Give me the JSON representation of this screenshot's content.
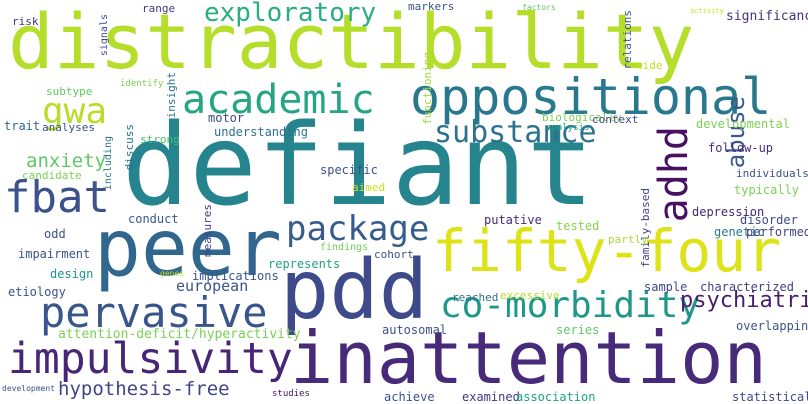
{
  "words": [
    {
      "text": "distractibility",
      "color": "#b5de2b"
    },
    {
      "text": "defiant",
      "color": "#25848e"
    },
    {
      "text": "inattention",
      "color": "#472a7a"
    },
    {
      "text": "pdd",
      "color": "#3e4a89"
    },
    {
      "text": "peer",
      "color": "#31668e"
    },
    {
      "text": "fifty-four",
      "color": "#dde318"
    },
    {
      "text": "oppositional",
      "color": "#2a788e"
    },
    {
      "text": "academic",
      "color": "#25a584"
    },
    {
      "text": "impulsivity",
      "color": "#482677"
    },
    {
      "text": "pervasive",
      "color": "#39568c"
    },
    {
      "text": "co-morbidity",
      "color": "#1f988b"
    },
    {
      "text": "package",
      "color": "#365c8d"
    },
    {
      "text": "gwa",
      "color": "#b8de29"
    },
    {
      "text": "fbat",
      "color": "#3b528b"
    },
    {
      "text": "exploratory",
      "color": "#29af7f"
    },
    {
      "text": "substance",
      "color": "#2c728e"
    },
    {
      "text": "adhd",
      "color": "#471063"
    },
    {
      "text": "abuse",
      "color": "#38598c"
    },
    {
      "text": "psychiatric",
      "color": "#481f70"
    },
    {
      "text": "hypothesis-free",
      "color": "#414487"
    },
    {
      "text": "anxiety",
      "color": "#5ec962"
    },
    {
      "text": "attention-deficit/hyperactivity",
      "color": "#7ad151"
    },
    {
      "text": "european",
      "color": "#3b528b"
    },
    {
      "text": "significance",
      "color": "#46327e"
    },
    {
      "text": "range",
      "color": "#443983"
    },
    {
      "text": "markers",
      "color": "#3b528b"
    },
    {
      "text": "risk",
      "color": "#46327e"
    },
    {
      "text": "signals",
      "color": "#3e4a89"
    },
    {
      "text": "relations",
      "color": "#3b528b"
    },
    {
      "text": "functioning",
      "color": "#a0da39"
    },
    {
      "text": "subtype",
      "color": "#5ec962"
    },
    {
      "text": "identify",
      "color": "#7ad151"
    },
    {
      "text": "insight",
      "color": "#2a788e"
    },
    {
      "text": "wide",
      "color": "#c2df23"
    },
    {
      "text": "trait",
      "color": "#31688e"
    },
    {
      "text": "analyses",
      "color": "#3b528b"
    },
    {
      "text": "motor",
      "color": "#3f4788"
    },
    {
      "text": "biologically",
      "color": "#7ad151"
    },
    {
      "text": "analysis",
      "color": "#22a884"
    },
    {
      "text": "context",
      "color": "#414487"
    },
    {
      "text": "developmental",
      "color": "#7ad151"
    },
    {
      "text": "understanding",
      "color": "#2c728e"
    },
    {
      "text": "strong",
      "color": "#4ac16d"
    },
    {
      "text": "discuss",
      "color": "#2c728e"
    },
    {
      "text": "candidate",
      "color": "#7ad151"
    },
    {
      "text": "including",
      "color": "#2a788e"
    },
    {
      "text": "follow-up",
      "color": "#472d7b"
    },
    {
      "text": "individuals",
      "color": "#3b528b"
    },
    {
      "text": "specific",
      "color": "#3b528b"
    },
    {
      "text": "aimed",
      "color": "#c8e020"
    },
    {
      "text": "typically",
      "color": "#7ad151"
    },
    {
      "text": "family-based",
      "color": "#404688"
    },
    {
      "text": "depression",
      "color": "#482677"
    },
    {
      "text": "disorder",
      "color": "#3e4a89"
    },
    {
      "text": "conduct",
      "color": "#365c8d"
    },
    {
      "text": "measures",
      "color": "#424086"
    },
    {
      "text": "putative",
      "color": "#472a7a"
    },
    {
      "text": "tested",
      "color": "#86d549"
    },
    {
      "text": "genetic",
      "color": "#2a788e"
    },
    {
      "text": "performed",
      "color": "#414487"
    },
    {
      "text": "odd",
      "color": "#3b528b"
    },
    {
      "text": "findings",
      "color": "#6ece58"
    },
    {
      "text": "cohort",
      "color": "#3b528b"
    },
    {
      "text": "partly",
      "color": "#a8db34"
    },
    {
      "text": "impairment",
      "color": "#3b528b"
    },
    {
      "text": "represents",
      "color": "#20a386"
    },
    {
      "text": "design",
      "color": "#1f968b"
    },
    {
      "text": "implications",
      "color": "#3b528b"
    },
    {
      "text": "genes",
      "color": "#c2df23"
    },
    {
      "text": "etiology",
      "color": "#3b528b"
    },
    {
      "text": "sample",
      "color": "#3e4989"
    },
    {
      "text": "characterized",
      "color": "#433e85"
    },
    {
      "text": "reached",
      "color": "#2c728e"
    },
    {
      "text": "excessive",
      "color": "#b5de2b"
    },
    {
      "text": "overlapping",
      "color": "#3b528b"
    },
    {
      "text": "autosomal",
      "color": "#3b528b"
    },
    {
      "text": "series",
      "color": "#5ec962"
    },
    {
      "text": "development",
      "color": "#3b528b"
    },
    {
      "text": "studies",
      "color": "#471063"
    },
    {
      "text": "achieve",
      "color": "#3b528b"
    },
    {
      "text": "examined",
      "color": "#453781"
    },
    {
      "text": "association",
      "color": "#20a386"
    },
    {
      "text": "statistical",
      "color": "#3e4a89"
    },
    {
      "text": "factors",
      "color": "#5ec962"
    },
    {
      "text": "activity",
      "color": "#c8e020"
    }
  ]
}
